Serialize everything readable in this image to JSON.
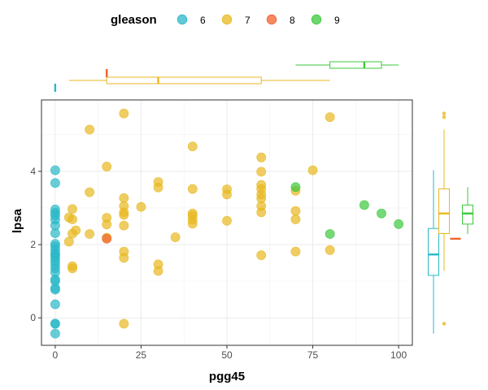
{
  "chart_data": {
    "type": "scatter",
    "title": "",
    "xlabel": "pgg45",
    "ylabel": "lpsa",
    "xlim": [
      -4,
      104
    ],
    "ylim": [
      -0.75,
      5.95
    ],
    "xticks": [
      0,
      25,
      50,
      75,
      100
    ],
    "yticks": [
      0,
      2,
      4
    ],
    "grid": true,
    "legend": {
      "title": "gleason",
      "placement": "top",
      "entries": [
        "6",
        "7",
        "8",
        "9"
      ]
    },
    "colors": {
      "6": "#2ab8c7",
      "7": "#e8b820",
      "8": "#f0622e",
      "9": "#3cc83c"
    },
    "series": [
      {
        "name": "6",
        "points": [
          [
            0,
            -0.43
          ],
          [
            0,
            -0.16
          ],
          [
            0,
            -0.16
          ],
          [
            0,
            0.37
          ],
          [
            0,
            0.77
          ],
          [
            0,
            0.81
          ],
          [
            0,
            1.0
          ],
          [
            0,
            1.05
          ],
          [
            0,
            1.24
          ],
          [
            0,
            1.35
          ],
          [
            0,
            1.45
          ],
          [
            0,
            1.55
          ],
          [
            0,
            1.64
          ],
          [
            0,
            1.72
          ],
          [
            0,
            1.75
          ],
          [
            0,
            1.85
          ],
          [
            0,
            1.95
          ],
          [
            0,
            2.02
          ],
          [
            0,
            2.31
          ],
          [
            0,
            2.52
          ],
          [
            0,
            2.68
          ],
          [
            0,
            2.79
          ],
          [
            0,
            2.87
          ],
          [
            0,
            2.96
          ],
          [
            0,
            3.68
          ],
          [
            0,
            4.03
          ]
        ]
      },
      {
        "name": "7",
        "points": [
          [
            20,
            -0.16
          ],
          [
            5,
            1.35
          ],
          [
            5,
            1.41
          ],
          [
            30,
            1.28
          ],
          [
            30,
            1.46
          ],
          [
            20,
            1.64
          ],
          [
            20,
            1.81
          ],
          [
            60,
            1.71
          ],
          [
            70,
            1.81
          ],
          [
            80,
            1.85
          ],
          [
            4,
            2.08
          ],
          [
            5,
            2.3
          ],
          [
            6,
            2.39
          ],
          [
            15,
            2.19
          ],
          [
            35,
            2.2
          ],
          [
            10,
            2.29
          ],
          [
            15,
            2.55
          ],
          [
            20,
            2.52
          ],
          [
            25,
            3.03
          ],
          [
            40,
            2.57
          ],
          [
            40,
            2.68
          ],
          [
            50,
            2.65
          ],
          [
            4,
            2.74
          ],
          [
            5,
            2.69
          ],
          [
            5,
            2.97
          ],
          [
            15,
            2.73
          ],
          [
            20,
            2.81
          ],
          [
            20,
            2.88
          ],
          [
            40,
            2.79
          ],
          [
            40,
            2.85
          ],
          [
            60,
            2.88
          ],
          [
            60,
            3.05
          ],
          [
            70,
            2.69
          ],
          [
            70,
            2.92
          ],
          [
            20,
            3.05
          ],
          [
            10,
            3.43
          ],
          [
            20,
            3.27
          ],
          [
            30,
            3.56
          ],
          [
            30,
            3.71
          ],
          [
            40,
            3.52
          ],
          [
            50,
            3.37
          ],
          [
            50,
            3.51
          ],
          [
            60,
            3.26
          ],
          [
            60,
            3.37
          ],
          [
            60,
            3.52
          ],
          [
            60,
            3.63
          ],
          [
            70,
            3.47
          ],
          [
            15,
            4.13
          ],
          [
            60,
            3.99
          ],
          [
            60,
            4.38
          ],
          [
            75,
            4.03
          ],
          [
            40,
            4.68
          ],
          [
            10,
            5.14
          ],
          [
            20,
            5.58
          ],
          [
            80,
            5.48
          ]
        ]
      },
      {
        "name": "8",
        "points": [
          [
            15,
            2.16
          ]
        ]
      },
      {
        "name": "9",
        "points": [
          [
            70,
            3.57
          ],
          [
            80,
            2.29
          ],
          [
            90,
            3.08
          ],
          [
            95,
            2.85
          ],
          [
            100,
            2.56
          ]
        ]
      }
    ],
    "marginal_x_boxplots": [
      {
        "name": "6",
        "min": 0,
        "q1": 0,
        "median": 0,
        "q3": 0,
        "max": 0
      },
      {
        "name": "7",
        "min": 4,
        "q1": 15,
        "median": 30,
        "q3": 60,
        "max": 80
      },
      {
        "name": "8",
        "min": 15,
        "q1": 15,
        "median": 15,
        "q3": 15,
        "max": 15
      },
      {
        "name": "9",
        "min": 70,
        "q1": 80,
        "median": 90,
        "q3": 95,
        "max": 100
      }
    ],
    "marginal_y_boxplots": [
      {
        "name": "6",
        "min": -0.43,
        "q1": 1.16,
        "median": 1.73,
        "q3": 2.44,
        "max": 4.03,
        "outliers": []
      },
      {
        "name": "7",
        "min": 1.28,
        "q1": 2.3,
        "median": 2.85,
        "q3": 3.52,
        "max": 5.14,
        "outliers": [
          -0.16,
          5.48,
          5.58
        ]
      },
      {
        "name": "8",
        "min": 2.16,
        "q1": 2.16,
        "median": 2.16,
        "q3": 2.16,
        "max": 2.16,
        "outliers": []
      },
      {
        "name": "9",
        "min": 2.29,
        "q1": 2.56,
        "median": 2.85,
        "q3": 3.08,
        "max": 3.57,
        "outliers": []
      }
    ]
  }
}
